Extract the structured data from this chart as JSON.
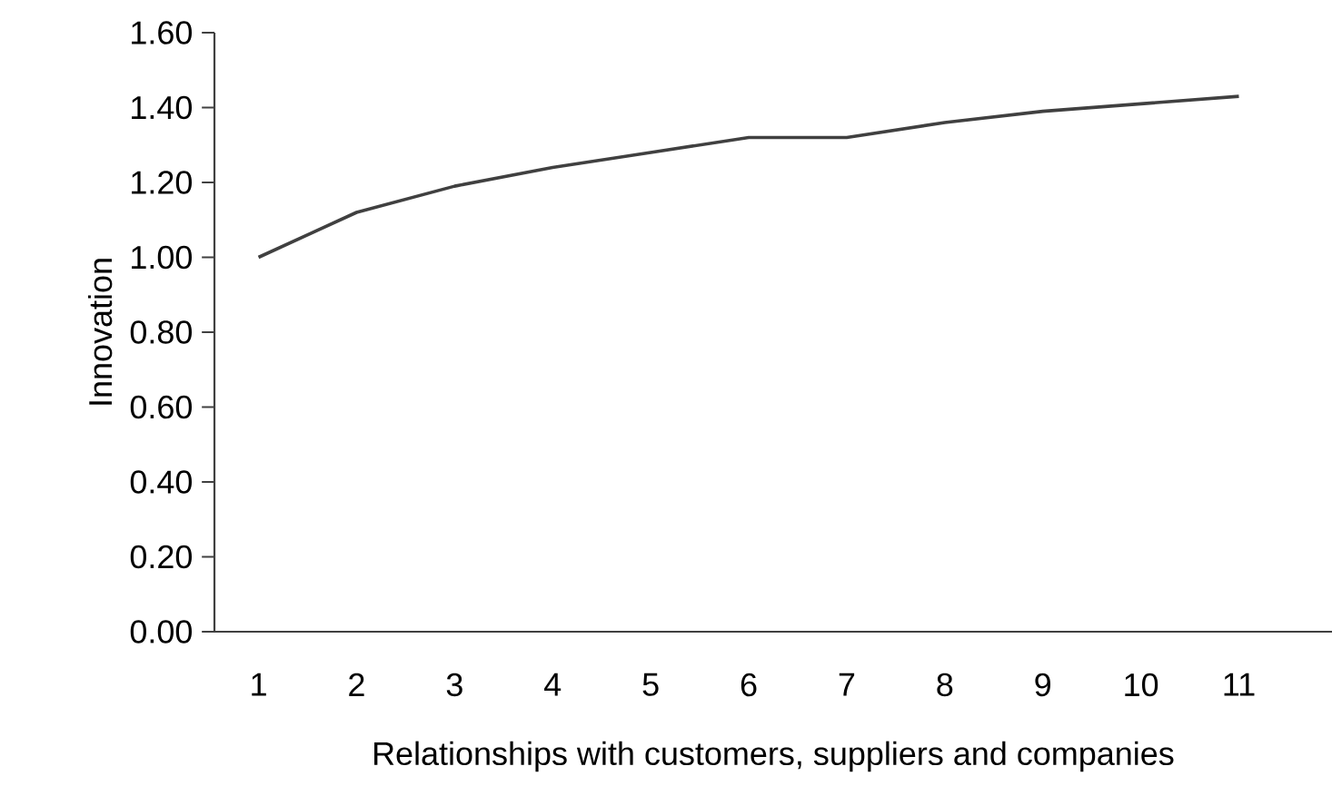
{
  "chart_data": {
    "type": "line",
    "xlabel": "Relationships with customers, suppliers and companies",
    "ylabel": "Innovation",
    "categories": [
      "1",
      "2",
      "3",
      "4",
      "5",
      "6",
      "7",
      "8",
      "9",
      "10",
      "11"
    ],
    "series": [
      {
        "color": "#404040",
        "values": [
          1.0,
          1.12,
          1.19,
          1.24,
          1.28,
          1.32,
          1.32,
          1.36,
          1.39,
          1.41,
          1.43
        ]
      }
    ],
    "ylim": [
      0,
      1.6
    ],
    "yticks": [
      {
        "value": 0,
        "label": "0.00"
      },
      {
        "value": 0.2,
        "label": "0.20"
      },
      {
        "value": 0.4,
        "label": "0.40"
      },
      {
        "value": 0.6,
        "label": "0.60"
      },
      {
        "value": 0.8,
        "label": "0.80"
      },
      {
        "value": 1.0,
        "label": "1.00"
      },
      {
        "value": 1.2,
        "label": "1.20"
      },
      {
        "value": 1.4,
        "label": "1.40"
      },
      {
        "value": 1.6,
        "label": "1.60"
      }
    ],
    "grid": false,
    "marker": "none",
    "line_style": "solid"
  }
}
